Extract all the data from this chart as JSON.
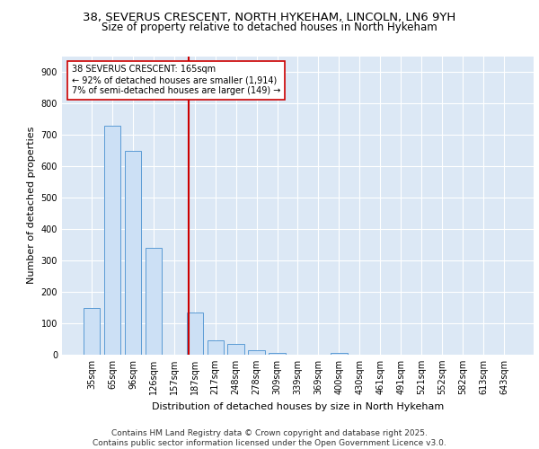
{
  "title_line1": "38, SEVERUS CRESCENT, NORTH HYKEHAM, LINCOLN, LN6 9YH",
  "title_line2": "Size of property relative to detached houses in North Hykeham",
  "xlabel": "Distribution of detached houses by size in North Hykeham",
  "ylabel": "Number of detached properties",
  "categories": [
    "35sqm",
    "65sqm",
    "96sqm",
    "126sqm",
    "157sqm",
    "187sqm",
    "217sqm",
    "248sqm",
    "278sqm",
    "309sqm",
    "339sqm",
    "369sqm",
    "400sqm",
    "430sqm",
    "461sqm",
    "491sqm",
    "521sqm",
    "552sqm",
    "582sqm",
    "613sqm",
    "643sqm"
  ],
  "values": [
    150,
    730,
    650,
    340,
    0,
    135,
    45,
    33,
    15,
    5,
    0,
    0,
    5,
    0,
    0,
    0,
    0,
    0,
    0,
    0,
    0
  ],
  "bar_color": "#cce0f5",
  "bar_edge_color": "#5b9bd5",
  "ref_line_color": "#cc0000",
  "ref_line_x": 4.7,
  "annotation_text": "38 SEVERUS CRESCENT: 165sqm\n← 92% of detached houses are smaller (1,914)\n7% of semi-detached houses are larger (149) →",
  "annotation_box_color": "#ffffff",
  "annotation_box_edge": "#cc0000",
  "ylim": [
    0,
    950
  ],
  "yticks": [
    0,
    100,
    200,
    300,
    400,
    500,
    600,
    700,
    800,
    900
  ],
  "background_color": "#dce8f5",
  "footer_text": "Contains HM Land Registry data © Crown copyright and database right 2025.\nContains public sector information licensed under the Open Government Licence v3.0.",
  "title_fontsize": 9.5,
  "subtitle_fontsize": 8.5,
  "axis_label_fontsize": 8,
  "tick_fontsize": 7,
  "footer_fontsize": 6.5,
  "annotation_fontsize": 7
}
